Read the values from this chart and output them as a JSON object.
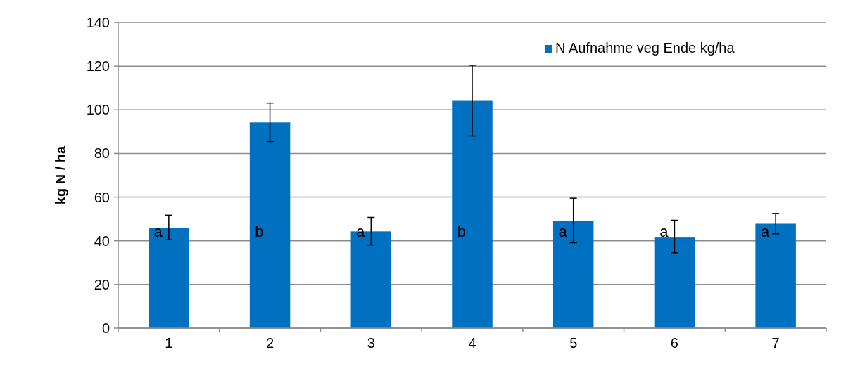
{
  "chart_data": {
    "type": "bar",
    "ylabel": "kg N / ha",
    "categories": [
      "1",
      "2",
      "3",
      "4",
      "5",
      "6",
      "7"
    ],
    "series": [
      {
        "name": "N Aufnahme veg Ende kg/ha",
        "color": "#0070c0",
        "values": [
          45.8,
          94.2,
          44.3,
          104.1,
          49.1,
          41.8,
          47.8
        ],
        "errors": [
          [
            40.5,
            51.7
          ],
          [
            85.5,
            103.1
          ],
          [
            38.1,
            50.7
          ],
          [
            88,
            120.4
          ],
          [
            39.1,
            59.5
          ],
          [
            34.5,
            49.4
          ],
          [
            43.2,
            52.5
          ]
        ]
      }
    ],
    "ylim": [
      0,
      140
    ],
    "yticks": [
      0,
      20,
      40,
      60,
      80,
      100,
      120,
      140
    ],
    "grid": "y",
    "legend": "top right",
    "annotations": [
      "a",
      "b",
      "a",
      "b",
      "a",
      "a",
      "a"
    ]
  }
}
